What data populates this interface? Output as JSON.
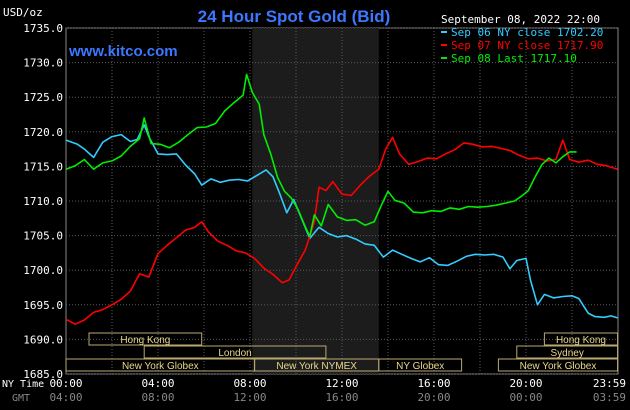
{
  "chart_data": {
    "type": "line",
    "title": "24 Hour Spot Gold (Bid)",
    "subtitle": "www.kitco.com",
    "ylabel": "USD/oz",
    "date_label": "September 08, 2022 22:00",
    "ylim": [
      1685,
      1735
    ],
    "yticks": [
      "1735.0",
      "1730.0",
      "1725.0",
      "1720.0",
      "1715.0",
      "1710.0",
      "1705.0",
      "1700.0",
      "1695.0",
      "1690.0",
      "1685.0"
    ],
    "xlim": [
      0,
      24
    ],
    "xticks_ny": [
      "00:00",
      "04:00",
      "08:00",
      "12:00",
      "16:00",
      "20:00",
      "23:59"
    ],
    "xticks_gmt": [
      "04:00",
      "08:00",
      "12:00",
      "16:00",
      "20:00",
      "00:00",
      "03:59"
    ],
    "xtick_hours": [
      0,
      4,
      8,
      12,
      16,
      20,
      23.98
    ],
    "ny_time_label": "NY Time",
    "gmt_label": "GMT",
    "grid": true,
    "legend_position": "top-right",
    "highlight_band": [
      8.1,
      13.6
    ],
    "series": [
      {
        "name": "Sep 06 NY close 1702.20",
        "color": "#33ccff",
        "points": [
          [
            0,
            1718.8
          ],
          [
            0.5,
            1718.2
          ],
          [
            0.8,
            1717.5
          ],
          [
            1.2,
            1716.3
          ],
          [
            1.6,
            1718.5
          ],
          [
            2.0,
            1719.3
          ],
          [
            2.4,
            1719.6
          ],
          [
            2.8,
            1718.6
          ],
          [
            3.1,
            1718.9
          ],
          [
            3.4,
            1721.0
          ],
          [
            3.6,
            1719.3
          ],
          [
            4.0,
            1716.8
          ],
          [
            4.4,
            1716.7
          ],
          [
            4.8,
            1716.8
          ],
          [
            5.2,
            1715.2
          ],
          [
            5.6,
            1713.9
          ],
          [
            5.9,
            1712.3
          ],
          [
            6.3,
            1713.2
          ],
          [
            6.7,
            1712.7
          ],
          [
            7.1,
            1713.0
          ],
          [
            7.5,
            1713.1
          ],
          [
            7.9,
            1712.9
          ],
          [
            8.3,
            1713.7
          ],
          [
            8.7,
            1714.5
          ],
          [
            9.0,
            1713.5
          ],
          [
            9.3,
            1711.0
          ],
          [
            9.6,
            1708.3
          ],
          [
            9.9,
            1710.2
          ],
          [
            10.2,
            1707.8
          ],
          [
            10.6,
            1704.6
          ],
          [
            11.0,
            1706.2
          ],
          [
            11.4,
            1705.3
          ],
          [
            11.8,
            1704.8
          ],
          [
            12.2,
            1705.0
          ],
          [
            12.6,
            1704.5
          ],
          [
            13.0,
            1703.8
          ],
          [
            13.4,
            1703.6
          ],
          [
            13.8,
            1701.9
          ],
          [
            14.2,
            1702.9
          ],
          [
            14.6,
            1702.3
          ],
          [
            15.0,
            1701.7
          ],
          [
            15.4,
            1701.2
          ],
          [
            15.8,
            1701.8
          ],
          [
            16.2,
            1700.8
          ],
          [
            16.6,
            1700.7
          ],
          [
            17.0,
            1701.3
          ],
          [
            17.4,
            1702.0
          ],
          [
            17.8,
            1702.3
          ],
          [
            18.2,
            1702.2
          ],
          [
            18.6,
            1702.3
          ],
          [
            19.0,
            1701.9
          ],
          [
            19.3,
            1700.2
          ],
          [
            19.6,
            1701.4
          ],
          [
            20.0,
            1701.7
          ],
          [
            20.2,
            1698.5
          ],
          [
            20.5,
            1695.0
          ],
          [
            20.8,
            1696.5
          ],
          [
            21.2,
            1696.0
          ],
          [
            21.6,
            1696.2
          ],
          [
            22.0,
            1696.3
          ],
          [
            22.3,
            1695.9
          ],
          [
            22.7,
            1693.8
          ],
          [
            23.0,
            1693.3
          ],
          [
            23.4,
            1693.2
          ],
          [
            23.7,
            1693.4
          ],
          [
            23.98,
            1693.1
          ]
        ]
      },
      {
        "name": "Sep 07 NY close 1717.90",
        "color": "#ff0000",
        "points": [
          [
            0,
            1692.9
          ],
          [
            0.4,
            1692.2
          ],
          [
            0.8,
            1692.8
          ],
          [
            1.2,
            1693.9
          ],
          [
            1.6,
            1694.3
          ],
          [
            2.0,
            1695.0
          ],
          [
            2.4,
            1695.8
          ],
          [
            2.8,
            1697.0
          ],
          [
            3.2,
            1699.5
          ],
          [
            3.6,
            1699.0
          ],
          [
            4.0,
            1702.4
          ],
          [
            4.4,
            1703.6
          ],
          [
            4.8,
            1704.7
          ],
          [
            5.2,
            1705.8
          ],
          [
            5.6,
            1706.2
          ],
          [
            5.9,
            1707.0
          ],
          [
            6.2,
            1705.5
          ],
          [
            6.6,
            1704.2
          ],
          [
            7.0,
            1703.6
          ],
          [
            7.4,
            1702.8
          ],
          [
            7.8,
            1702.5
          ],
          [
            8.2,
            1701.7
          ],
          [
            8.6,
            1700.3
          ],
          [
            9.0,
            1699.4
          ],
          [
            9.4,
            1698.2
          ],
          [
            9.7,
            1698.6
          ],
          [
            10.0,
            1700.5
          ],
          [
            10.4,
            1702.9
          ],
          [
            10.6,
            1704.9
          ],
          [
            10.8,
            1707.1
          ],
          [
            11.0,
            1712.0
          ],
          [
            11.3,
            1711.5
          ],
          [
            11.6,
            1712.8
          ],
          [
            12.0,
            1711.0
          ],
          [
            12.4,
            1710.8
          ],
          [
            12.8,
            1712.3
          ],
          [
            13.2,
            1713.6
          ],
          [
            13.6,
            1714.6
          ],
          [
            13.9,
            1717.5
          ],
          [
            14.2,
            1719.2
          ],
          [
            14.5,
            1716.8
          ],
          [
            14.9,
            1715.3
          ],
          [
            15.3,
            1715.7
          ],
          [
            15.7,
            1716.2
          ],
          [
            16.1,
            1716.1
          ],
          [
            16.5,
            1716.8
          ],
          [
            16.9,
            1717.4
          ],
          [
            17.3,
            1718.4
          ],
          [
            17.7,
            1718.2
          ],
          [
            18.1,
            1717.8
          ],
          [
            18.5,
            1717.9
          ],
          [
            18.9,
            1717.6
          ],
          [
            19.3,
            1717.3
          ],
          [
            19.7,
            1716.6
          ],
          [
            20.1,
            1716.1
          ],
          [
            20.5,
            1716.2
          ],
          [
            20.9,
            1715.8
          ],
          [
            21.3,
            1716.0
          ],
          [
            21.6,
            1718.8
          ],
          [
            21.9,
            1716.0
          ],
          [
            22.3,
            1715.6
          ],
          [
            22.7,
            1715.9
          ],
          [
            23.1,
            1715.3
          ],
          [
            23.5,
            1715.1
          ],
          [
            23.98,
            1714.6
          ]
        ]
      },
      {
        "name": "Sep 08 Last 1717.10",
        "color": "#00ee00",
        "points": [
          [
            0,
            1714.6
          ],
          [
            0.4,
            1715.1
          ],
          [
            0.8,
            1716.0
          ],
          [
            1.2,
            1714.6
          ],
          [
            1.6,
            1715.5
          ],
          [
            2.0,
            1715.8
          ],
          [
            2.4,
            1716.5
          ],
          [
            2.8,
            1717.9
          ],
          [
            3.2,
            1719.0
          ],
          [
            3.4,
            1722.0
          ],
          [
            3.7,
            1718.3
          ],
          [
            4.1,
            1718.2
          ],
          [
            4.5,
            1717.7
          ],
          [
            4.9,
            1718.5
          ],
          [
            5.3,
            1719.6
          ],
          [
            5.7,
            1720.6
          ],
          [
            6.1,
            1720.7
          ],
          [
            6.5,
            1721.2
          ],
          [
            6.9,
            1723.0
          ],
          [
            7.3,
            1724.2
          ],
          [
            7.7,
            1725.3
          ],
          [
            7.85,
            1728.3
          ],
          [
            8.1,
            1725.7
          ],
          [
            8.4,
            1724.0
          ],
          [
            8.6,
            1719.6
          ],
          [
            8.9,
            1716.8
          ],
          [
            9.2,
            1713.4
          ],
          [
            9.5,
            1711.4
          ],
          [
            9.8,
            1710.4
          ],
          [
            10.1,
            1708.7
          ],
          [
            10.4,
            1706.3
          ],
          [
            10.6,
            1704.9
          ],
          [
            10.8,
            1708.0
          ],
          [
            11.1,
            1706.4
          ],
          [
            11.4,
            1709.5
          ],
          [
            11.8,
            1707.7
          ],
          [
            12.2,
            1707.2
          ],
          [
            12.6,
            1707.3
          ],
          [
            13.0,
            1706.5
          ],
          [
            13.4,
            1707.0
          ],
          [
            13.7,
            1709.3
          ],
          [
            14.0,
            1711.4
          ],
          [
            14.3,
            1710.1
          ],
          [
            14.7,
            1709.7
          ],
          [
            15.1,
            1708.4
          ],
          [
            15.5,
            1708.3
          ],
          [
            15.9,
            1708.6
          ],
          [
            16.3,
            1708.5
          ],
          [
            16.7,
            1709.0
          ],
          [
            17.1,
            1708.8
          ],
          [
            17.5,
            1709.2
          ],
          [
            17.9,
            1709.1
          ],
          [
            18.3,
            1709.2
          ],
          [
            18.7,
            1709.4
          ],
          [
            19.1,
            1709.7
          ],
          [
            19.5,
            1710.0
          ],
          [
            19.8,
            1710.7
          ],
          [
            20.1,
            1711.5
          ],
          [
            20.4,
            1713.5
          ],
          [
            20.7,
            1715.3
          ],
          [
            21.0,
            1716.2
          ],
          [
            21.3,
            1715.5
          ],
          [
            21.6,
            1716.4
          ],
          [
            21.9,
            1717.1
          ],
          [
            22.2,
            1717.1
          ]
        ]
      }
    ],
    "sessions": [
      {
        "label": "Hong Kong",
        "start": 1.0,
        "end": 5.9,
        "row": 0
      },
      {
        "label": "London",
        "start": 3.4,
        "end": 11.3,
        "row": 1
      },
      {
        "label": "New York Globex",
        "start": 0,
        "end": 8.2,
        "row": 2
      },
      {
        "label": "New York NYMEX",
        "start": 8.2,
        "end": 13.6,
        "row": 2
      },
      {
        "label": "NY Globex",
        "start": 13.6,
        "end": 17.2,
        "row": 2
      },
      {
        "label": "Hong Kong",
        "start": 20.8,
        "end": 23.98,
        "row": 0
      },
      {
        "label": "Sydney",
        "start": 19.6,
        "end": 23.98,
        "row": 1
      },
      {
        "label": "New York Globex",
        "start": 18.8,
        "end": 23.98,
        "row": 2
      }
    ]
  }
}
